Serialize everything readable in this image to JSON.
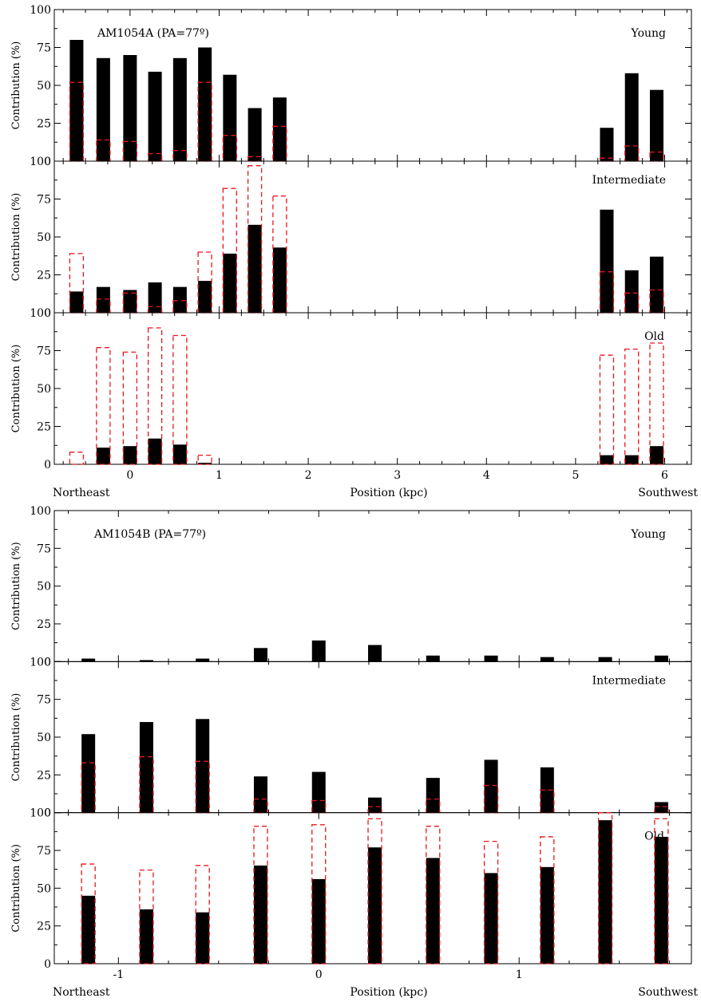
{
  "chart_data": [
    {
      "type": "bar",
      "group": "AM1054A",
      "panel": "Young",
      "label": "AM1054A (PA=77º)",
      "ylabel": "Contribution (%)",
      "ylim": [
        0,
        100
      ],
      "yticks": [
        0,
        25,
        50,
        75,
        100
      ],
      "x": [
        -0.6,
        -0.3,
        0.0,
        0.28,
        0.56,
        0.84,
        1.12,
        1.4,
        1.68,
        5.35,
        5.63,
        5.91
      ],
      "series": [
        {
          "style": "solid-black",
          "values": [
            80,
            68,
            70,
            59,
            68,
            75,
            57,
            35,
            42,
            22,
            58,
            47
          ]
        },
        {
          "style": "dashed-red-outline",
          "values": [
            52,
            14,
            13,
            5,
            7,
            52,
            17,
            3,
            23,
            2,
            10,
            6
          ]
        }
      ]
    },
    {
      "type": "bar",
      "group": "AM1054A",
      "panel": "Intermediate",
      "ylabel": "Contribution (%)",
      "ylim": [
        0,
        100
      ],
      "yticks": [
        0,
        25,
        50,
        75,
        100
      ],
      "x": [
        -0.6,
        -0.3,
        0.0,
        0.28,
        0.56,
        0.84,
        1.12,
        1.4,
        1.68,
        5.35,
        5.63,
        5.91
      ],
      "series": [
        {
          "style": "solid-black",
          "values": [
            14,
            17,
            15,
            20,
            17,
            21,
            39,
            58,
            43,
            68,
            28,
            37
          ]
        },
        {
          "style": "dashed-red-outline",
          "values": [
            39,
            9,
            13,
            4,
            8,
            40,
            82,
            97,
            77,
            27,
            13,
            15
          ]
        }
      ]
    },
    {
      "type": "bar",
      "group": "AM1054A",
      "panel": "Old",
      "ylabel": "Contribution (%)",
      "ylim": [
        0,
        100
      ],
      "yticks": [
        0,
        25,
        50,
        75,
        100
      ],
      "x": [
        -0.6,
        -0.3,
        0.0,
        0.28,
        0.56,
        0.84,
        1.12,
        1.4,
        1.68,
        5.35,
        5.63,
        5.91
      ],
      "series": [
        {
          "style": "solid-black",
          "values": [
            0,
            11,
            12,
            17,
            13,
            1,
            0,
            0,
            0,
            6,
            6,
            12
          ]
        },
        {
          "style": "dashed-red-outline",
          "values": [
            8,
            77,
            74,
            90,
            85,
            6,
            0,
            0,
            0,
            72,
            76,
            80
          ]
        }
      ],
      "xlabel": "Position (kpc)",
      "xlim": [
        -0.85,
        6.3
      ],
      "xticks": [
        0,
        1,
        2,
        3,
        4,
        5,
        6
      ],
      "left_label": "Northeast",
      "right_label": "Southwest"
    },
    {
      "type": "bar",
      "group": "AM1054B",
      "panel": "Young",
      "label": "AM1054B (PA=77º)",
      "ylabel": "Contribution (%)",
      "ylim": [
        0,
        100
      ],
      "yticks": [
        0,
        25,
        50,
        75,
        100
      ],
      "x": [
        -1.15,
        -0.86,
        -0.58,
        -0.29,
        0.0,
        0.28,
        0.57,
        0.86,
        1.14,
        1.43,
        1.71
      ],
      "series": [
        {
          "style": "solid-black",
          "values": [
            2,
            1,
            2,
            9,
            14,
            11,
            4,
            4,
            3,
            3,
            4
          ]
        },
        {
          "style": "dashed-red-outline",
          "values": [
            0,
            0,
            0,
            0,
            0,
            0,
            0,
            0,
            0,
            0,
            0
          ]
        }
      ]
    },
    {
      "type": "bar",
      "group": "AM1054B",
      "panel": "Intermediate",
      "ylabel": "Contribution (%)",
      "ylim": [
        0,
        100
      ],
      "yticks": [
        0,
        25,
        50,
        75,
        100
      ],
      "x": [
        -1.15,
        -0.86,
        -0.58,
        -0.29,
        0.0,
        0.28,
        0.57,
        0.86,
        1.14,
        1.43,
        1.71
      ],
      "series": [
        {
          "style": "solid-black",
          "values": [
            52,
            60,
            62,
            24,
            27,
            10,
            23,
            35,
            30,
            0,
            7
          ]
        },
        {
          "style": "dashed-red-outline",
          "values": [
            33,
            37,
            34,
            9,
            8,
            4,
            9,
            18,
            15,
            0,
            4
          ]
        }
      ]
    },
    {
      "type": "bar",
      "group": "AM1054B",
      "panel": "Old",
      "ylabel": "Contribution (%)",
      "ylim": [
        0,
        100
      ],
      "yticks": [
        0,
        25,
        50,
        75,
        100
      ],
      "x": [
        -1.15,
        -0.86,
        -0.58,
        -0.29,
        0.0,
        0.28,
        0.57,
        0.86,
        1.14,
        1.43,
        1.71
      ],
      "series": [
        {
          "style": "solid-black",
          "values": [
            45,
            36,
            34,
            65,
            56,
            77,
            70,
            60,
            64,
            95,
            84
          ]
        },
        {
          "style": "dashed-red-outline",
          "values": [
            66,
            62,
            65,
            91,
            92,
            96,
            91,
            81,
            84,
            100,
            96
          ]
        }
      ],
      "xlabel": "Position (kpc)",
      "xlim": [
        -1.32,
        1.86
      ],
      "xticks": [
        -1,
        0,
        1
      ],
      "left_label": "Northeast",
      "right_label": "Southwest"
    }
  ],
  "colors": {
    "bar_fill": "#000000",
    "outline_bar": "#e8161c",
    "axis": "#000000"
  }
}
